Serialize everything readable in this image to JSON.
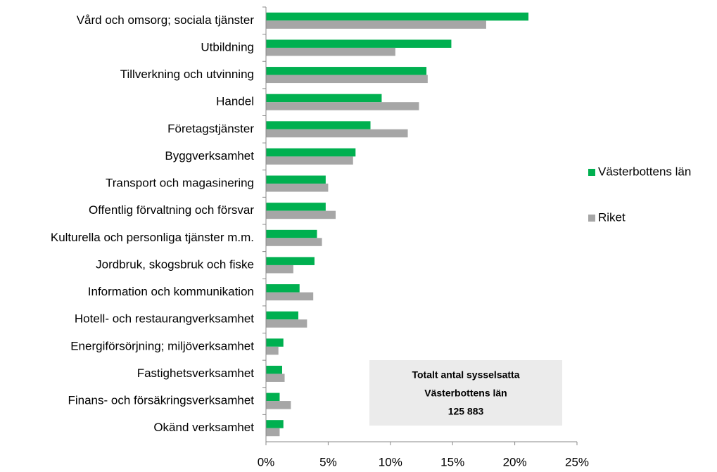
{
  "chart_data": {
    "type": "hbar",
    "categories": [
      "Vård och omsorg; sociala tjänster",
      "Utbildning ",
      "Tillverkning och utvinning",
      "Handel",
      "Företagstjänster",
      "Byggverksamhet",
      "Transport och magasinering",
      "Offentlig förvaltning och försvar",
      "Kulturella och personliga tjänster m.m.",
      "Jordbruk, skogsbruk och fiske",
      "Information och kommunikation",
      "Hotell- och restaurangverksamhet",
      "Energiförsörjning; miljöverksamhet",
      "Fastighetsverksamhet",
      "Finans- och försäkringsverksamhet",
      "Okänd verksamhet"
    ],
    "series": [
      {
        "name": "Västerbottens län",
        "color": "#00b050",
        "values": [
          21.1,
          14.9,
          12.9,
          9.3,
          8.4,
          7.2,
          4.8,
          4.8,
          4.1,
          3.9,
          2.7,
          2.6,
          1.4,
          1.3,
          1.1,
          1.4
        ]
      },
      {
        "name": "Riket",
        "color": "#a6a6a6",
        "values": [
          17.7,
          10.4,
          13.0,
          12.3,
          11.4,
          7.0,
          5.0,
          5.6,
          4.5,
          2.2,
          3.8,
          3.3,
          1.0,
          1.5,
          2.0,
          1.1
        ]
      }
    ],
    "xlim": [
      0,
      25
    ],
    "xticks": [
      {
        "value": 0,
        "label": "0%"
      },
      {
        "value": 5,
        "label": "5%"
      },
      {
        "value": 10,
        "label": "10%"
      },
      {
        "value": 15,
        "label": "15%"
      },
      {
        "value": 20,
        "label": "20%"
      },
      {
        "value": 25,
        "label": "25%"
      }
    ],
    "legend": "right",
    "annotation": [
      "Totalt antal sysselsatta",
      "Västerbottens län",
      "125 883"
    ]
  }
}
